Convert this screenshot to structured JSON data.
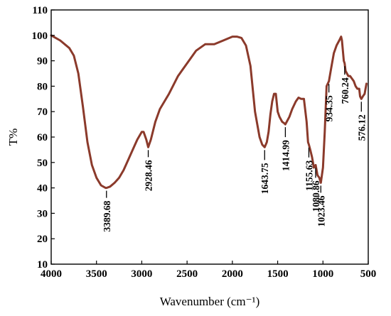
{
  "chart_data": {
    "type": "line",
    "xlabel": "Wavenumber (cm⁻¹)",
    "ylabel": "T%",
    "xlim": [
      4000,
      500
    ],
    "ylim": [
      10,
      110
    ],
    "x_reversed": true,
    "x_ticks": [
      4000,
      3500,
      3000,
      2500,
      2000,
      1500,
      1000,
      500
    ],
    "y_ticks": [
      10,
      20,
      30,
      40,
      50,
      60,
      70,
      80,
      90,
      100,
      110
    ],
    "grid": false,
    "line_color": "#8b3a2b",
    "series": [
      {
        "x": [
          4000,
          3900,
          3800,
          3750,
          3700,
          3650,
          3600,
          3550,
          3500,
          3450,
          3400,
          3389.68,
          3350,
          3300,
          3250,
          3200,
          3150,
          3100,
          3050,
          3000,
          2980,
          2950,
          2928.46,
          2900,
          2850,
          2800,
          2700,
          2600,
          2500,
          2400,
          2300,
          2200,
          2100,
          2000,
          1950,
          1900,
          1850,
          1800,
          1750,
          1700,
          1670,
          1643.75,
          1620,
          1600,
          1580,
          1560,
          1540,
          1520,
          1500,
          1480,
          1450,
          1430,
          1414.99,
          1400,
          1370,
          1340,
          1300,
          1270,
          1240,
          1210,
          1180,
          1165,
          1155.63,
          1140,
          1120,
          1100,
          1080.86,
          1060,
          1040,
          1023.46,
          1000,
          980,
          960,
          934.35,
          910,
          880,
          850,
          820,
          800,
          790,
          780,
          770,
          760.24,
          750,
          720,
          700,
          680,
          660,
          640,
          620,
          600,
          590,
          576.12,
          560,
          540,
          520
        ],
        "y": [
          100,
          98,
          95,
          92,
          85,
          72,
          58,
          49,
          44,
          41,
          40,
          40,
          40.5,
          42,
          44,
          47,
          51,
          55,
          59,
          62,
          62,
          59,
          56,
          59,
          66,
          71,
          77,
          84,
          89,
          94,
          96.5,
          96.5,
          98,
          99.5,
          99.5,
          99,
          96,
          88,
          70,
          60,
          57,
          56,
          58,
          62,
          69,
          74,
          77,
          77,
          70,
          68,
          66,
          65.5,
          65,
          66,
          68,
          71,
          74,
          75.5,
          75,
          75,
          66,
          58,
          57,
          55,
          52,
          48,
          49,
          45,
          44,
          42,
          48,
          62,
          80,
          82,
          87,
          93,
          96,
          98,
          99.5,
          98,
          94,
          90,
          89,
          86,
          84,
          84,
          83,
          82,
          80,
          79,
          79,
          76,
          75,
          76,
          77,
          81
        ]
      }
    ],
    "annotations": [
      {
        "label": "3389.68",
        "x": 3389.68,
        "y": 40
      },
      {
        "label": "2928.46",
        "x": 2928.46,
        "y": 56
      },
      {
        "label": "1643.75",
        "x": 1643.75,
        "y": 56
      },
      {
        "label": "1414.99",
        "x": 1414.99,
        "y": 65
      },
      {
        "label": "1155.63",
        "x": 1155.63,
        "y": 57
      },
      {
        "label": "1080.86",
        "x": 1080.86,
        "y": 49
      },
      {
        "label": "1023.46",
        "x": 1023.46,
        "y": 42
      },
      {
        "label": "934.35",
        "x": 934.35,
        "y": 82
      },
      {
        "label": "760.24",
        "x": 760.24,
        "y": 89
      },
      {
        "label": "576.12",
        "x": 576.12,
        "y": 75
      }
    ]
  }
}
